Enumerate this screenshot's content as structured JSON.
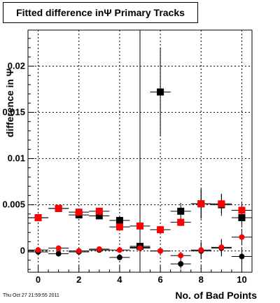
{
  "title": "Fitted difference inΨ  Primary Tracks",
  "timestamp": "Thu Oct 27 21:59:55 2011",
  "chart_data": {
    "type": "scatter",
    "title": "Fitted difference inΨ  Primary Tracks",
    "xlabel": "No. of Bad Points",
    "ylabel": "difference in Ψ",
    "xlim": [
      -0.5,
      10.5
    ],
    "ylim": [
      -0.0023,
      0.0239
    ],
    "x_ticks": [
      0,
      2,
      4,
      6,
      8,
      10
    ],
    "x_tick_labels": [
      "0",
      "2",
      "4",
      "6",
      "8",
      "10"
    ],
    "y_ticks": [
      0,
      0.005,
      0.01,
      0.015,
      0.02
    ],
    "y_tick_labels": [
      "0",
      "0.005",
      "0.01",
      "0.015",
      "0.02"
    ],
    "grid": true,
    "series": [
      {
        "color": "#000000",
        "marker": "square",
        "points": [
          {
            "x": 0,
            "y": 0.0036,
            "yerr": 0.0002
          },
          {
            "x": 1,
            "y": 0.0046,
            "yerr": 0.0002
          },
          {
            "x": 2,
            "y": 0.0039,
            "yerr": 0.0002
          },
          {
            "x": 3,
            "y": 0.0038,
            "yerr": 0.0002
          },
          {
            "x": 4,
            "y": 0.0033,
            "yerr": 0.0003
          },
          {
            "x": 5,
            "y": 0.0005,
            "yerr": 0.024
          },
          {
            "x": 6,
            "y": 0.0172,
            "yerr": 0.0048
          },
          {
            "x": 7,
            "y": 0.0043,
            "yerr": 0.0009
          },
          {
            "x": 8,
            "y": 0.0051,
            "yerr": 0.0016
          },
          {
            "x": 9,
            "y": 0.005,
            "yerr": 0.0012
          },
          {
            "x": 10,
            "y": 0.0036,
            "yerr": 0.0009
          }
        ]
      },
      {
        "color": "#ff0000",
        "marker": "square",
        "points": [
          {
            "x": 0,
            "y": 0.0036,
            "yerr": 0.0002
          },
          {
            "x": 1,
            "y": 0.0046,
            "yerr": 0.0002
          },
          {
            "x": 2,
            "y": 0.0042,
            "yerr": 0.0002
          },
          {
            "x": 3,
            "y": 0.0043,
            "yerr": 0.0002
          },
          {
            "x": 4,
            "y": 0.0026,
            "yerr": 0.0003
          },
          {
            "x": 5,
            "y": 0.0027,
            "yerr": 0.0003
          },
          {
            "x": 6,
            "y": 0.0023,
            "yerr": 0.0003
          },
          {
            "x": 7,
            "y": 0.0031,
            "yerr": 0.0004
          },
          {
            "x": 8,
            "y": 0.0051,
            "yerr": 0.0016
          },
          {
            "x": 9,
            "y": 0.0051,
            "yerr": 0.001
          },
          {
            "x": 10,
            "y": 0.0044,
            "yerr": 0.0009
          }
        ]
      },
      {
        "color": "#000000",
        "marker": "circle",
        "points": [
          {
            "x": 0,
            "y": -0.0001,
            "yerr": 0.0002
          },
          {
            "x": 1,
            "y": -0.0003,
            "yerr": 0.0002
          },
          {
            "x": 2,
            "y": -0.0001,
            "yerr": 0.0002
          },
          {
            "x": 3,
            "y": 0.0001,
            "yerr": 0.0002
          },
          {
            "x": 4,
            "y": -0.0007,
            "yerr": 0.0003
          },
          {
            "x": 5,
            "y": 0.0004,
            "yerr": 0.0003
          },
          {
            "x": 6,
            "y": 0.0,
            "yerr": 0.0003
          },
          {
            "x": 7,
            "y": -0.0014,
            "yerr": 0.0005
          },
          {
            "x": 8,
            "y": 0.0,
            "yerr": 0.0009
          },
          {
            "x": 9,
            "y": 0.0003,
            "yerr": 0.0009
          },
          {
            "x": 10,
            "y": -0.0006,
            "yerr": 0.0009
          }
        ]
      },
      {
        "color": "#ff0000",
        "marker": "circle",
        "points": [
          {
            "x": 0,
            "y": 0.0001,
            "yerr": 0.0002
          },
          {
            "x": 1,
            "y": 0.0003,
            "yerr": 0.0002
          },
          {
            "x": 2,
            "y": 0.0,
            "yerr": 0.0002
          },
          {
            "x": 3,
            "y": 0.0002,
            "yerr": 0.0002
          },
          {
            "x": 4,
            "y": 0.0001,
            "yerr": 0.0003
          },
          {
            "x": 5,
            "y": 0.0003,
            "yerr": 0.0003
          },
          {
            "x": 6,
            "y": 0.0,
            "yerr": 0.0003
          },
          {
            "x": 7,
            "y": -0.0005,
            "yerr": 0.0004
          },
          {
            "x": 8,
            "y": 0.0001,
            "yerr": 0.0009
          },
          {
            "x": 9,
            "y": 0.0004,
            "yerr": 0.0009
          },
          {
            "x": 10,
            "y": 0.0015,
            "yerr": 0.0009
          }
        ]
      }
    ]
  }
}
